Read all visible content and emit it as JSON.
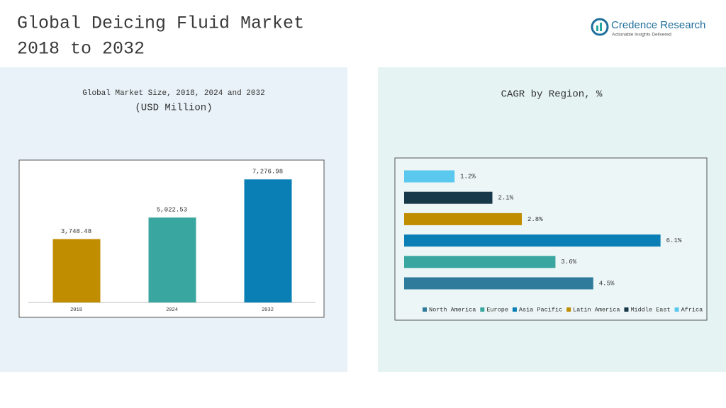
{
  "header": {
    "title": [
      "Global Deicing Fluid Market",
      "2018 to 2032"
    ],
    "brand": "Credence Research",
    "tagline": "Actionable Insights Delivered"
  },
  "chart_data": [
    {
      "type": "bar",
      "title": "Global Market Size, 2018, 2024 and 2032",
      "subtitle": "(USD Million)",
      "categories": [
        "2018",
        "2024",
        "2032"
      ],
      "values": [
        3748.48,
        5022.53,
        7276.98
      ],
      "value_labels": [
        "3,748.48",
        "5,022.53",
        "7,276.98"
      ],
      "colors": [
        "#c08c00",
        "#3aa6a0",
        "#0a7fb5"
      ],
      "ylim": [
        0,
        8000
      ]
    },
    {
      "type": "barh",
      "title": "CAGR by Region, %",
      "xlim": [
        0,
        7
      ],
      "legend": "bottom",
      "series": [
        {
          "name": "North America",
          "color": "#2f7b9c",
          "values": [
            4.5
          ],
          "value_labels": [
            "4.5%"
          ]
        },
        {
          "name": "Europe",
          "color": "#3aa6a0",
          "values": [
            3.6
          ],
          "value_labels": [
            "3.6%"
          ]
        },
        {
          "name": "Asia Pacific",
          "color": "#0a7fb5",
          "values": [
            6.1
          ],
          "value_labels": [
            "6.1%"
          ]
        },
        {
          "name": "Latin America",
          "color": "#c08c00",
          "values": [
            2.8
          ],
          "value_labels": [
            "2.8%"
          ]
        },
        {
          "name": "Middle East",
          "color": "#173848",
          "values": [
            2.1
          ],
          "value_labels": [
            "2.1%"
          ]
        },
        {
          "name": "Africa",
          "color": "#5bc8ef",
          "values": [
            1.2
          ],
          "value_labels": [
            "1.2%"
          ]
        }
      ]
    }
  ]
}
